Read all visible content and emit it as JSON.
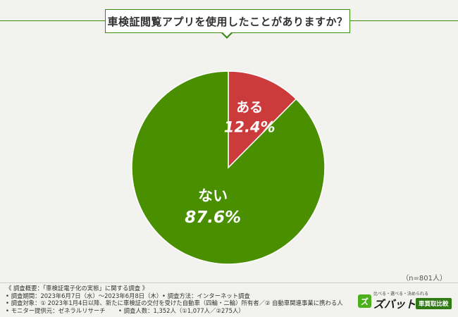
{
  "title": "車検証閲覧アプリを使用したことがありますか？",
  "sample_size": "（n=801人）",
  "colors": {
    "accent": "#3b8a10",
    "yes": "#cc3b3b",
    "no": "#4a8f00"
  },
  "chart_data": {
    "type": "pie",
    "slices": [
      {
        "label": "ある",
        "value": 12.4,
        "display": "12.4%",
        "color": "#cc3b3b"
      },
      {
        "label": "ない",
        "value": 87.6,
        "display": "87.6%",
        "color": "#4a8f00"
      }
    ]
  },
  "footer": {
    "overview": "《 調査概要：「車検証電子化の実態」に関する調査 》",
    "period": "• 調査期間：2023年6月7日（水）～2023年6月8日（木）",
    "method": "• 調査方法：インターネット調査",
    "target": "• 調査対象：① 2023年1月4日以降、新たに車検証の交付を受けた自動車（四輪・二輪）所有者／② 自動車関連事業に携わる人",
    "monitor": "• モニター提供元：ゼネラルリサーチ",
    "count": "• 調査人数：1,352人（①1,077人／②275人）"
  },
  "logo": {
    "tagline": "比べる・選べる・決められる",
    "mark": "ズ",
    "name": "ズバット",
    "badge": "車買取比較"
  }
}
